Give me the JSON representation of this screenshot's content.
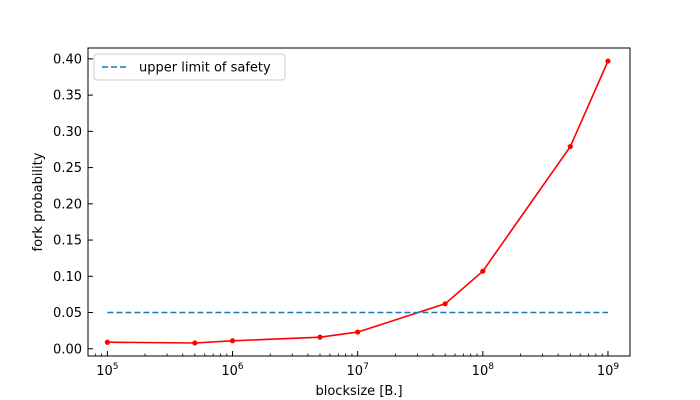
{
  "chart_data": {
    "type": "line",
    "xlabel": "blocksize [B.]",
    "ylabel": "fork probability",
    "x_scale": "log",
    "xlim": [
      70000,
      1500000000
    ],
    "ylim": [
      -0.01,
      0.415
    ],
    "x_ticks": [
      {
        "value": 100000,
        "base": "10",
        "exp": "5"
      },
      {
        "value": 1000000,
        "base": "10",
        "exp": "6"
      },
      {
        "value": 10000000,
        "base": "10",
        "exp": "7"
      },
      {
        "value": 100000000,
        "base": "10",
        "exp": "8"
      },
      {
        "value": 1000000000,
        "base": "10",
        "exp": "9"
      }
    ],
    "y_ticks": [
      {
        "value": 0.0,
        "label": "0.00"
      },
      {
        "value": 0.05,
        "label": "0.05"
      },
      {
        "value": 0.1,
        "label": "0.10"
      },
      {
        "value": 0.15,
        "label": "0.15"
      },
      {
        "value": 0.2,
        "label": "0.20"
      },
      {
        "value": 0.25,
        "label": "0.25"
      },
      {
        "value": 0.3,
        "label": "0.30"
      },
      {
        "value": 0.35,
        "label": "0.35"
      },
      {
        "value": 0.4,
        "label": "0.40"
      }
    ],
    "grid": false,
    "legend_position": "top-left",
    "series": [
      {
        "color": "#ff0000",
        "style": "solid",
        "marker": "dot",
        "x": [
          100000,
          500000,
          1000000,
          5000000,
          10000000,
          50000000,
          100000000,
          500000000,
          1000000000
        ],
        "y": [
          0.009,
          0.008,
          0.011,
          0.016,
          0.023,
          0.062,
          0.107,
          0.279,
          0.397
        ]
      },
      {
        "name": "upper limit of safety",
        "color": "#1f77b4",
        "style": "dashed",
        "marker": "none",
        "x": [
          100000,
          1000000000
        ],
        "y": [
          0.05,
          0.05
        ]
      }
    ]
  }
}
